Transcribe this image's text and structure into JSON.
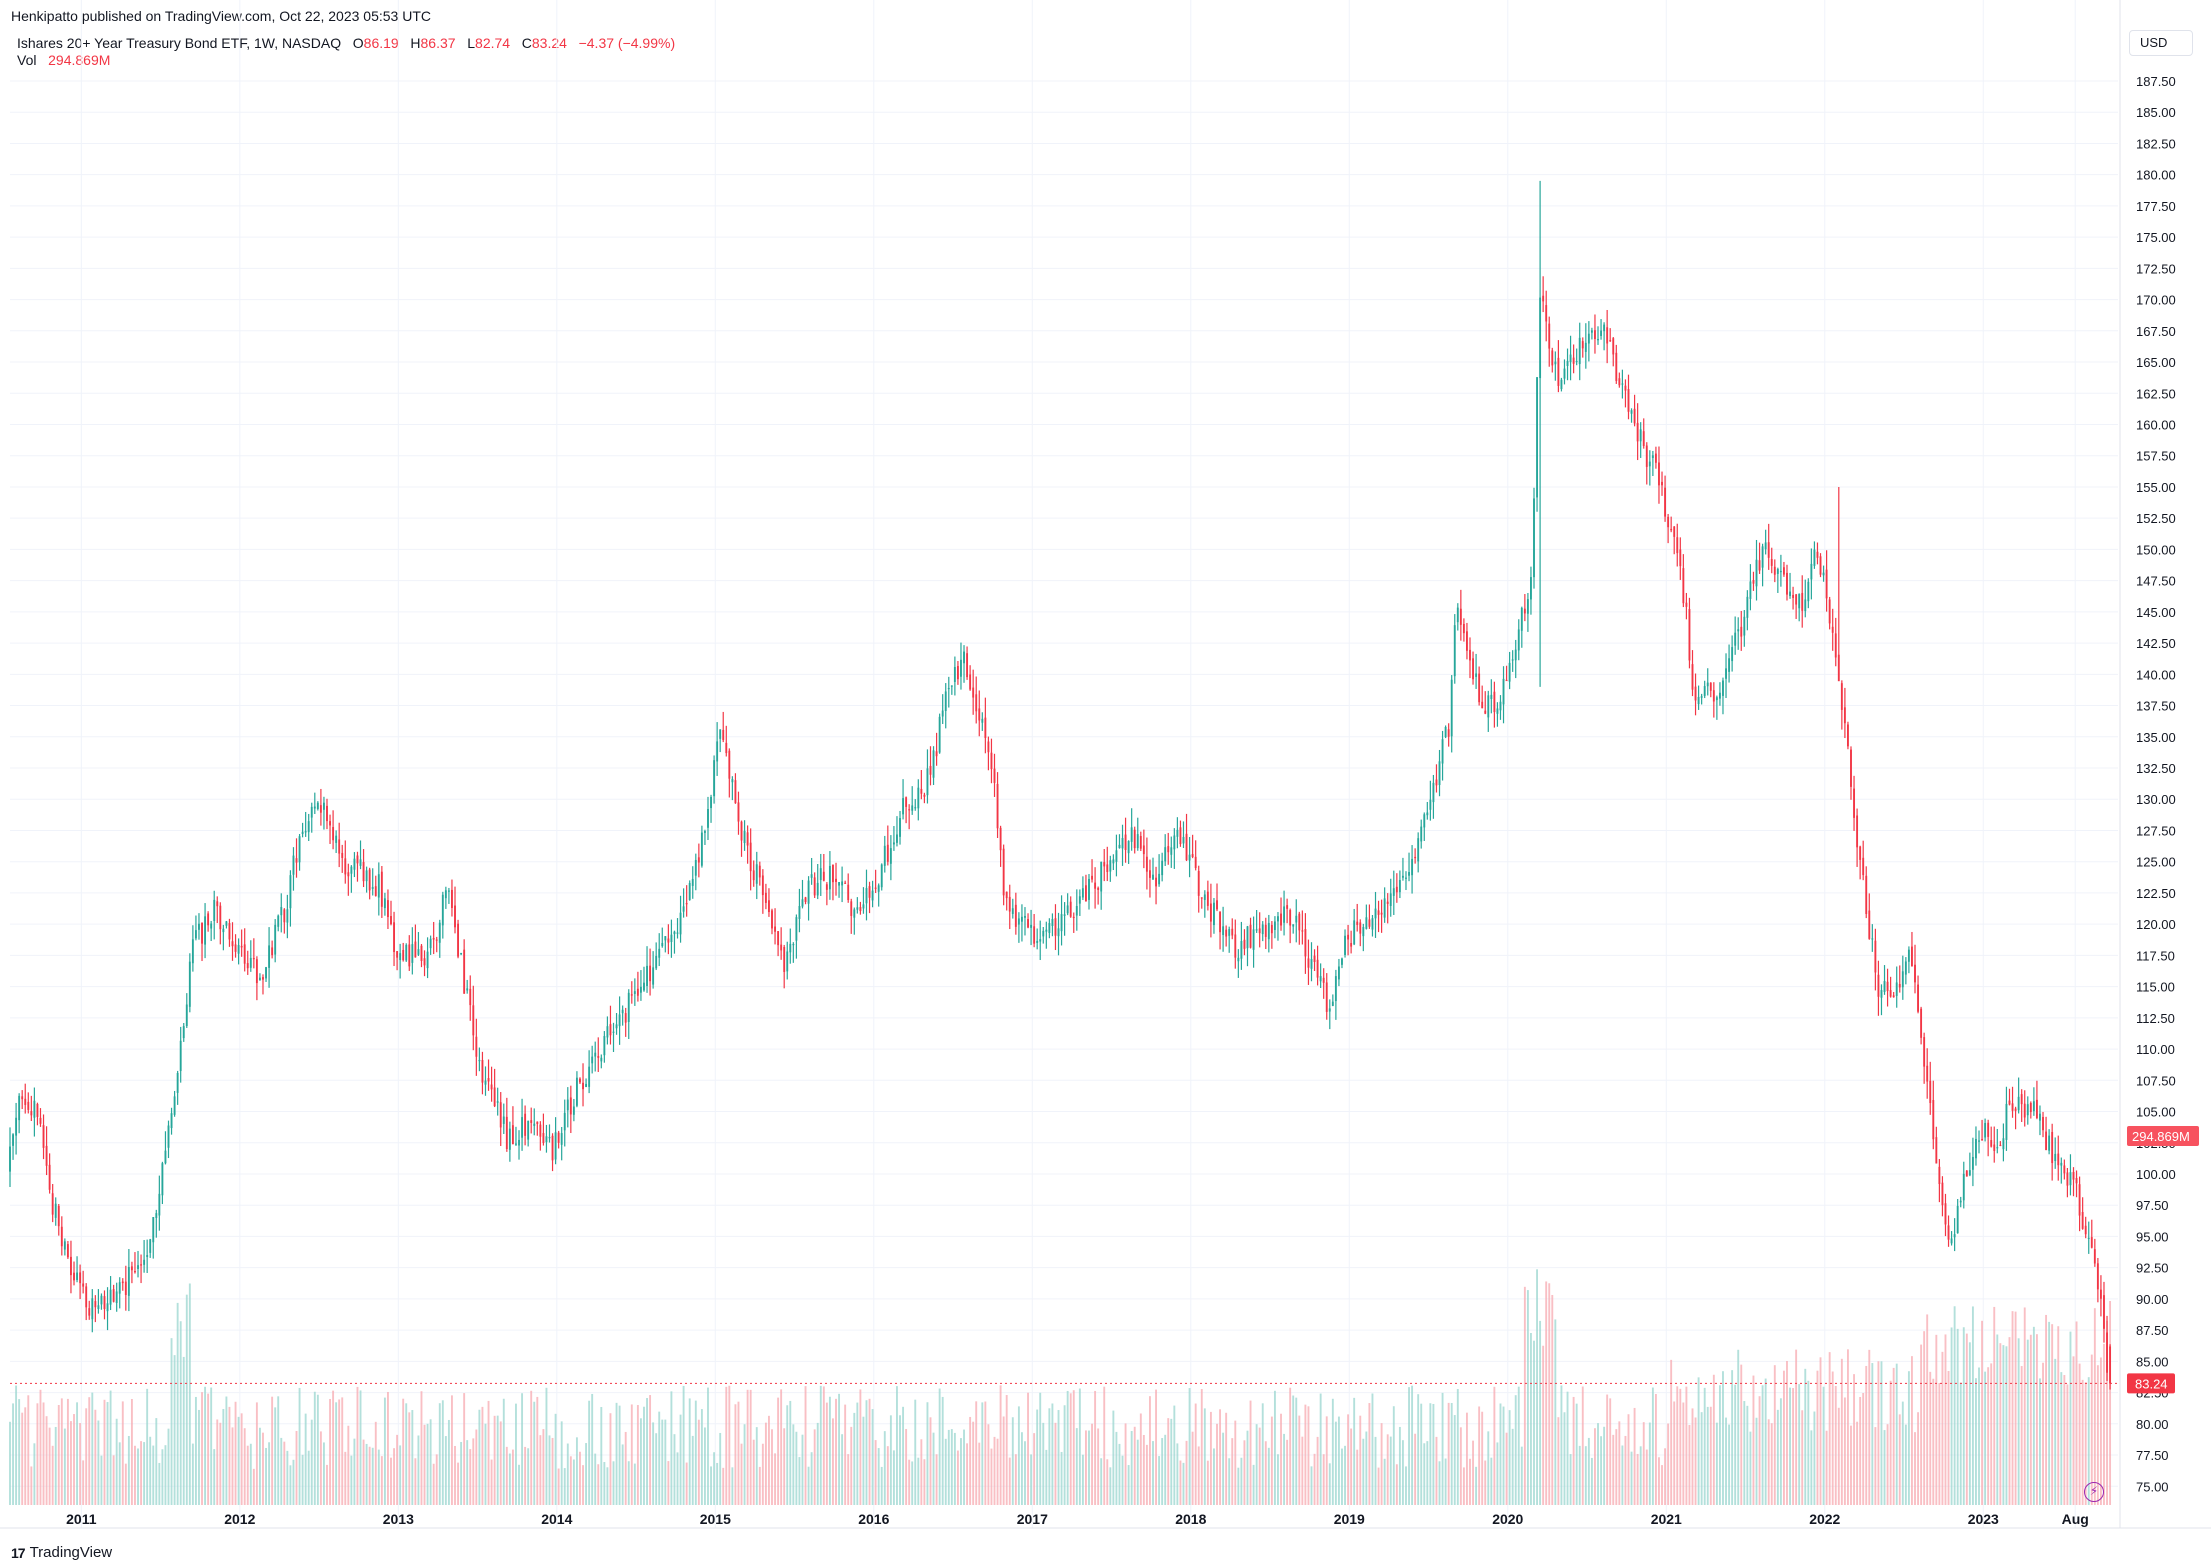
{
  "header": {
    "published": "Henkipatto published on TradingView.com, Oct 22, 2023 05:53 UTC"
  },
  "legend": {
    "symbol": "Ishares 20+ Year Treasury Bond ETF, 1W, NASDAQ",
    "o_label": "O",
    "o": "86.19",
    "h_label": "H",
    "h": "86.37",
    "l_label": "L",
    "l": "82.74",
    "c_label": "C",
    "c": "83.24",
    "change": "−4.37 (−4.99%)",
    "vol_label": "Vol",
    "vol": "294.869M"
  },
  "currency": "USD",
  "footer": {
    "brand": "TradingView",
    "logo": "17"
  },
  "colors": {
    "up": "#26a69a",
    "down": "#f23645",
    "grid": "#f0f3fa",
    "text": "#131722",
    "volUp": "#9ad5cf",
    "volDown": "#f7a9b0"
  },
  "chart_data": {
    "type": "candlestick",
    "title": "",
    "interval": "1W",
    "ylim": [
      73.5,
      189.5
    ],
    "y_ticks": [
      "75.00",
      "77.50",
      "80.00",
      "82.50",
      "85.00",
      "87.50",
      "90.00",
      "92.50",
      "95.00",
      "97.50",
      "100.00",
      "102.50",
      "105.00",
      "107.50",
      "110.00",
      "112.50",
      "115.00",
      "117.50",
      "120.00",
      "122.50",
      "125.00",
      "127.50",
      "130.00",
      "132.50",
      "135.00",
      "137.50",
      "140.00",
      "142.50",
      "145.00",
      "147.50",
      "150.00",
      "152.50",
      "155.00",
      "157.50",
      "160.00",
      "162.50",
      "165.00",
      "167.50",
      "170.00",
      "172.50",
      "175.00",
      "177.50",
      "180.00",
      "182.50",
      "185.00",
      "187.50"
    ],
    "x_range": [
      2010.55,
      2023.85
    ],
    "x_ticks": [
      {
        "label": "2011",
        "t": 2011.0
      },
      {
        "label": "2012",
        "t": 2012.0
      },
      {
        "label": "2013",
        "t": 2013.0
      },
      {
        "label": "2014",
        "t": 2014.0
      },
      {
        "label": "2015",
        "t": 2015.0
      },
      {
        "label": "2016",
        "t": 2016.0
      },
      {
        "label": "2017",
        "t": 2017.0
      },
      {
        "label": "2018",
        "t": 2018.0
      },
      {
        "label": "2019",
        "t": 2019.0
      },
      {
        "label": "2020",
        "t": 2020.0
      },
      {
        "label": "2021",
        "t": 2021.0
      },
      {
        "label": "2022",
        "t": 2022.0
      },
      {
        "label": "2023",
        "t": 2023.0
      },
      {
        "label": "Aug",
        "t": 2023.58
      }
    ],
    "price_path": [
      [
        2010.55,
        100
      ],
      [
        2010.65,
        107
      ],
      [
        2010.75,
        104
      ],
      [
        2010.85,
        97
      ],
      [
        2010.95,
        92
      ],
      [
        2011.1,
        89
      ],
      [
        2011.3,
        91
      ],
      [
        2011.45,
        95
      ],
      [
        2011.6,
        105
      ],
      [
        2011.72,
        118
      ],
      [
        2011.85,
        121
      ],
      [
        2012.0,
        118
      ],
      [
        2012.15,
        116
      ],
      [
        2012.3,
        121
      ],
      [
        2012.4,
        127
      ],
      [
        2012.55,
        130
      ],
      [
        2012.65,
        125
      ],
      [
        2012.8,
        124
      ],
      [
        2012.9,
        123
      ],
      [
        2013.0,
        118
      ],
      [
        2013.2,
        117
      ],
      [
        2013.33,
        123
      ],
      [
        2013.45,
        114
      ],
      [
        2013.55,
        108
      ],
      [
        2013.7,
        103
      ],
      [
        2013.9,
        104
      ],
      [
        2014.0,
        102
      ],
      [
        2014.15,
        107
      ],
      [
        2014.3,
        110
      ],
      [
        2014.45,
        113
      ],
      [
        2014.6,
        116
      ],
      [
        2014.8,
        120
      ],
      [
        2014.95,
        127
      ],
      [
        2015.05,
        136
      ],
      [
        2015.15,
        129
      ],
      [
        2015.3,
        123
      ],
      [
        2015.45,
        117
      ],
      [
        2015.6,
        123
      ],
      [
        2015.75,
        124
      ],
      [
        2015.9,
        121
      ],
      [
        2016.05,
        124
      ],
      [
        2016.2,
        129
      ],
      [
        2016.35,
        131
      ],
      [
        2016.5,
        139
      ],
      [
        2016.6,
        141
      ],
      [
        2016.75,
        134
      ],
      [
        2016.85,
        122
      ],
      [
        2016.95,
        120
      ],
      [
        2017.1,
        119
      ],
      [
        2017.25,
        121
      ],
      [
        2017.45,
        124
      ],
      [
        2017.65,
        127
      ],
      [
        2017.8,
        124
      ],
      [
        2017.95,
        127
      ],
      [
        2018.1,
        122
      ],
      [
        2018.3,
        118
      ],
      [
        2018.5,
        120
      ],
      [
        2018.65,
        121
      ],
      [
        2018.8,
        116
      ],
      [
        2018.9,
        113
      ],
      [
        2019.0,
        119
      ],
      [
        2019.15,
        120
      ],
      [
        2019.3,
        123
      ],
      [
        2019.45,
        126
      ],
      [
        2019.55,
        131
      ],
      [
        2019.65,
        136
      ],
      [
        2019.7,
        146
      ],
      [
        2019.85,
        138
      ],
      [
        2019.95,
        137
      ],
      [
        2020.05,
        142
      ],
      [
        2020.17,
        148
      ],
      [
        2020.22,
        170
      ],
      [
        2020.35,
        163
      ],
      [
        2020.5,
        167
      ],
      [
        2020.6,
        168
      ],
      [
        2020.72,
        164
      ],
      [
        2020.85,
        159
      ],
      [
        2020.95,
        156
      ],
      [
        2021.1,
        150
      ],
      [
        2021.2,
        138
      ],
      [
        2021.35,
        139
      ],
      [
        2021.5,
        144
      ],
      [
        2021.62,
        150
      ],
      [
        2021.75,
        148
      ],
      [
        2021.88,
        145
      ],
      [
        2021.95,
        151
      ],
      [
        2022.05,
        145
      ],
      [
        2022.15,
        135
      ],
      [
        2022.25,
        124
      ],
      [
        2022.35,
        115
      ],
      [
        2022.45,
        114
      ],
      [
        2022.55,
        118
      ],
      [
        2022.65,
        109
      ],
      [
        2022.75,
        98
      ],
      [
        2022.82,
        94
      ],
      [
        2022.9,
        100
      ],
      [
        2023.0,
        104
      ],
      [
        2023.1,
        102
      ],
      [
        2023.2,
        106
      ],
      [
        2023.35,
        105
      ],
      [
        2023.5,
        100
      ],
      [
        2023.6,
        99
      ],
      [
        2023.7,
        94
      ],
      [
        2023.78,
        88
      ],
      [
        2023.8,
        83.24
      ]
    ],
    "spikes": [
      {
        "t": 2020.2,
        "high": 179.5,
        "low": 139
      },
      {
        "t": 2022.08,
        "high": 155,
        "low": 141
      }
    ],
    "last_price": "83.24",
    "last_volume": "294.869M"
  }
}
